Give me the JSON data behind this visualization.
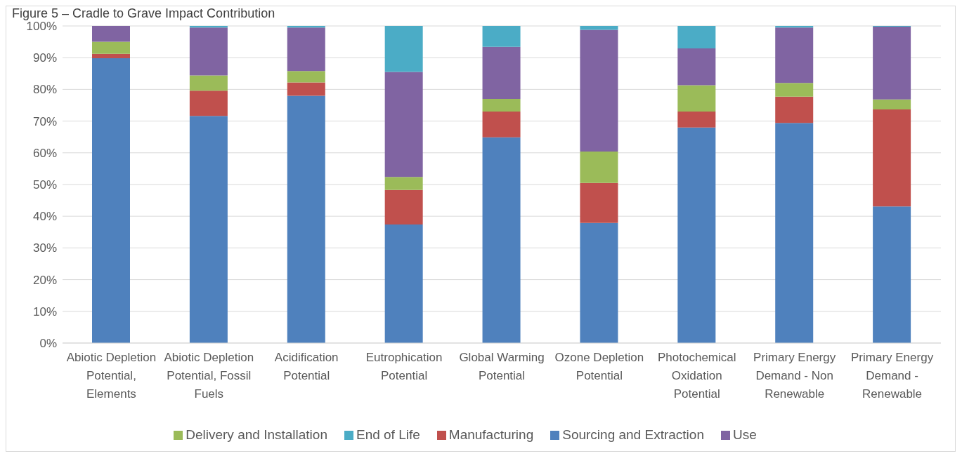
{
  "chart_data": {
    "type": "bar",
    "title": "Figure 5 – Cradle to Grave Impact Contribution",
    "stacked": true,
    "categories": [
      "Abiotic Depletion Potential, Elements",
      "Abiotic Depletion Potential, Fossil Fuels",
      "Acidification Potential",
      "Eutrophication Potential",
      "Global Warming Potential",
      "Ozone Depletion Potential",
      "Photochemical Oxidation Potential",
      "Primary Energy Demand - Non Renewable",
      "Primary Energy Demand - Renewable"
    ],
    "series": [
      {
        "name": "Sourcing and Extraction",
        "color": "#4f81bd",
        "values": [
          89.8,
          71.6,
          78.0,
          37.4,
          64.9,
          37.9,
          68.0,
          69.4,
          43.1
        ]
      },
      {
        "name": "Manufacturing",
        "color": "#c0504d",
        "values": [
          1.4,
          8.0,
          4.2,
          10.9,
          8.1,
          12.6,
          5.0,
          8.3,
          30.6
        ]
      },
      {
        "name": "Delivery and Installation",
        "color": "#9bbb59",
        "values": [
          3.8,
          4.8,
          3.6,
          4.1,
          4.0,
          9.9,
          8.3,
          4.3,
          3.1
        ]
      },
      {
        "name": "Use",
        "color": "#8064a2",
        "values": [
          5.0,
          15.1,
          13.7,
          33.1,
          16.4,
          38.4,
          11.6,
          17.5,
          23.0
        ]
      },
      {
        "name": "End of Life",
        "color": "#4bacc6",
        "values": [
          0,
          0.5,
          0.5,
          14.5,
          6.6,
          1.2,
          7.1,
          0.5,
          0.2
        ]
      }
    ],
    "ylim": [
      0,
      100
    ],
    "yticks": [
      {
        "value": 0,
        "label": "0%"
      },
      {
        "value": 10,
        "label": "10%"
      },
      {
        "value": 20,
        "label": "20%"
      },
      {
        "value": 30,
        "label": "30%"
      },
      {
        "value": 40,
        "label": "40%"
      },
      {
        "value": 50,
        "label": "50%"
      },
      {
        "value": 60,
        "label": "60%"
      },
      {
        "value": 70,
        "label": "70%"
      },
      {
        "value": 80,
        "label": "80%"
      },
      {
        "value": 90,
        "label": "90%"
      },
      {
        "value": 100,
        "label": "100%"
      }
    ],
    "grid": "y",
    "legend": "bottom"
  }
}
